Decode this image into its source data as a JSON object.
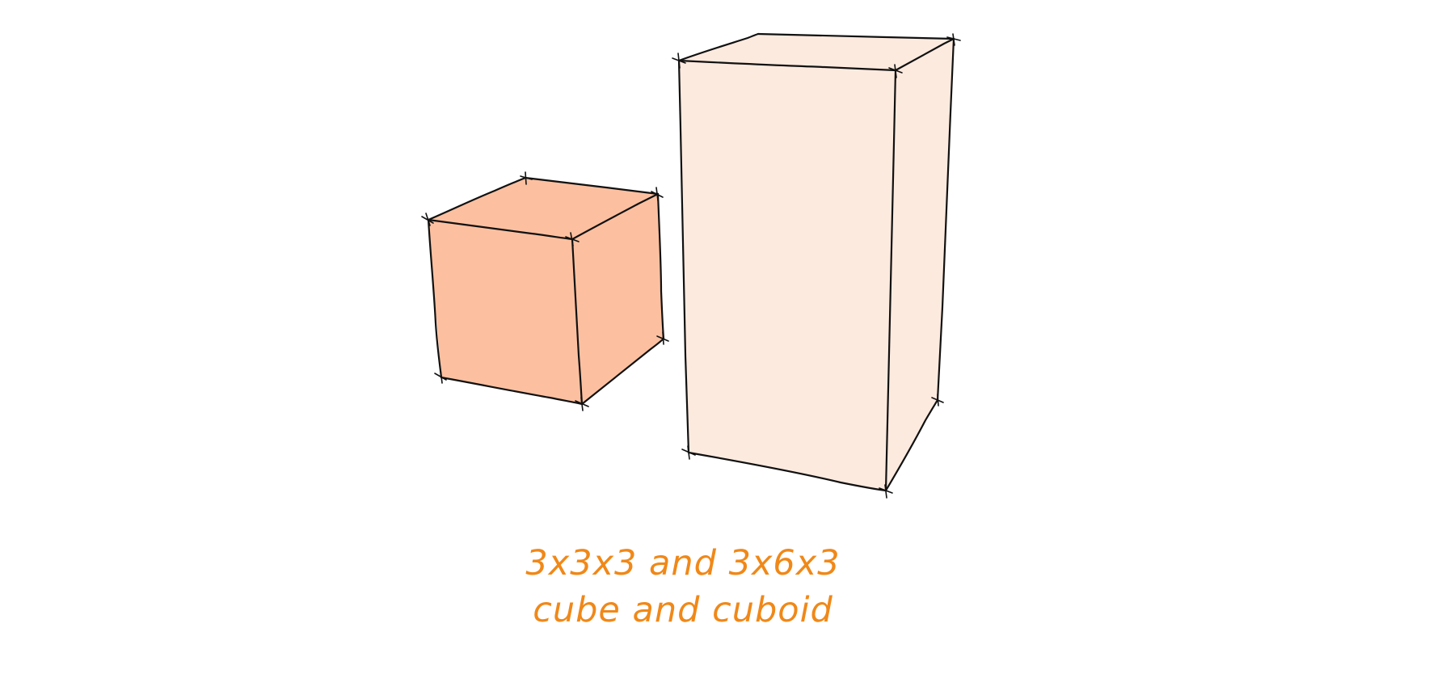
{
  "caption": {
    "line1": "3x3x3 and 3x6x3",
    "line2": "cube and cuboid"
  },
  "colors": {
    "background": "#ffffff",
    "cube_fill": "#fcc0a0",
    "cuboid_fill": "#fdeadf",
    "outline": "#111111",
    "caption": "#f08818"
  }
}
